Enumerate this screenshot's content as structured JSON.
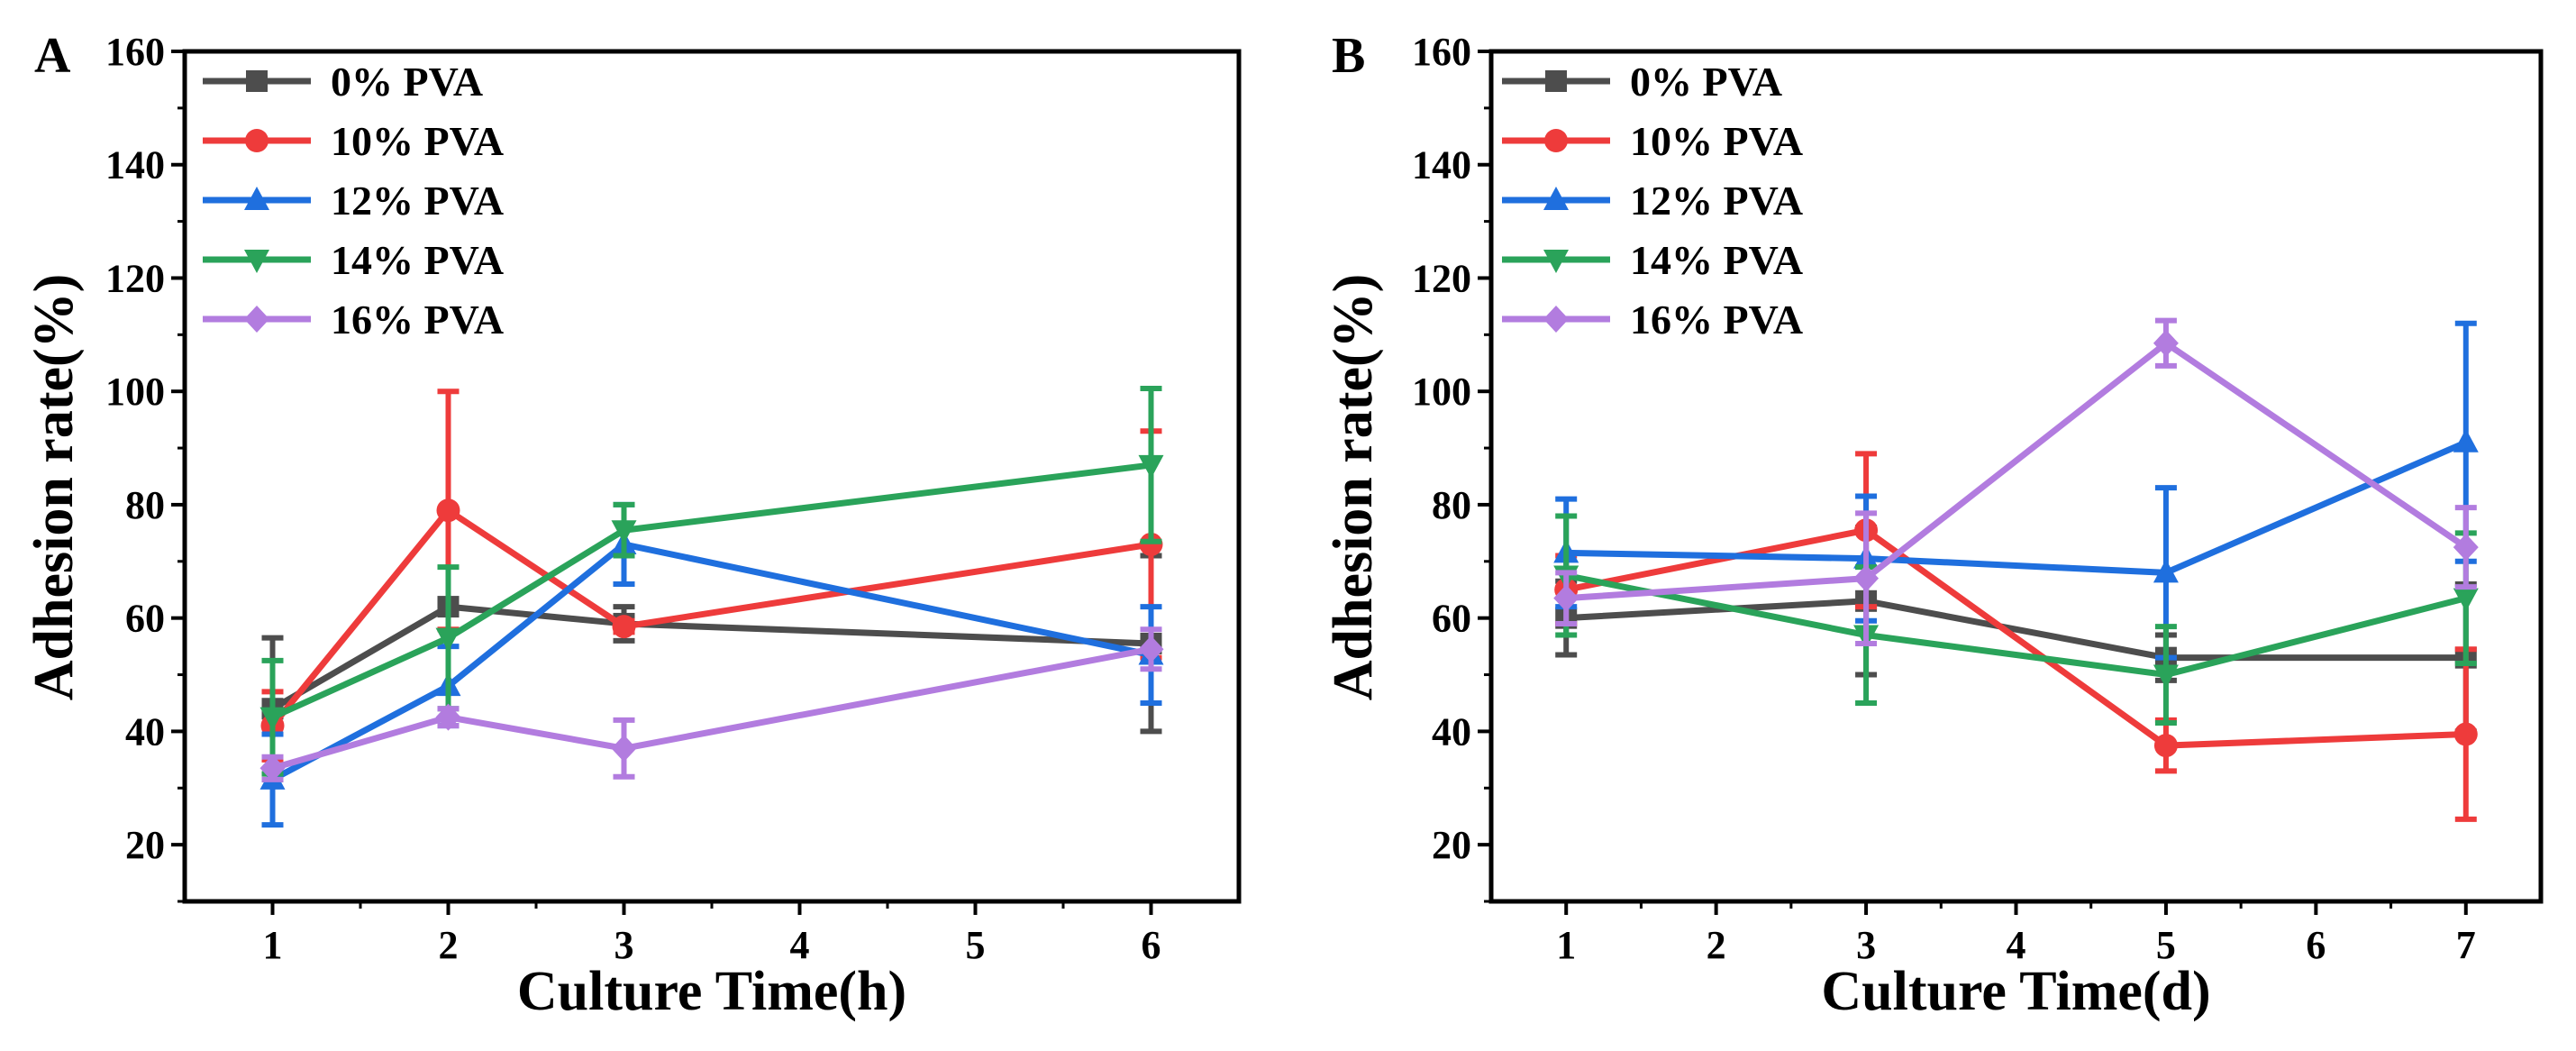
{
  "chart_data": [
    {
      "type": "line",
      "panel_label": "A",
      "title": "",
      "xlabel": "Culture Time(h)",
      "ylabel": "Adhesion rate(%)",
      "x_ticks": [
        1,
        2,
        3,
        4,
        5,
        6
      ],
      "y_ticks": [
        20,
        40,
        60,
        80,
        100,
        120,
        140,
        160
      ],
      "xlim": [
        0.5,
        6.5
      ],
      "ylim": [
        10,
        160
      ],
      "legend_position": "top-left",
      "x": [
        1,
        2,
        3,
        6
      ],
      "series": [
        {
          "name": "0% PVA",
          "color": "#4d4d4d",
          "marker": "square",
          "values": [
            44,
            62,
            59,
            55.5
          ],
          "errors": [
            12.5,
            0.5,
            3,
            15.5
          ]
        },
        {
          "name": "10% PVA",
          "color": "#ee3b3b",
          "marker": "circle",
          "values": [
            41,
            79,
            58.5,
            73
          ],
          "errors": [
            6,
            21,
            1,
            20
          ]
        },
        {
          "name": "12% PVA",
          "color": "#1f6fde",
          "marker": "triangle-up",
          "values": [
            31.5,
            48,
            73,
            53.5
          ],
          "errors": [
            8,
            7,
            7,
            8.5
          ]
        },
        {
          "name": "14% PVA",
          "color": "#2aa35a",
          "marker": "triangle-down",
          "values": [
            42.5,
            56.5,
            75.5,
            87
          ],
          "errors": [
            10,
            12.5,
            4.5,
            13.5
          ]
        },
        {
          "name": "16% PVA",
          "color": "#b27cdf",
          "marker": "diamond",
          "values": [
            33.5,
            42.5,
            37,
            54.5
          ],
          "errors": [
            2,
            1.5,
            5,
            3.5
          ]
        }
      ]
    },
    {
      "type": "line",
      "panel_label": "B",
      "title": "",
      "xlabel": "Culture Time(d)",
      "ylabel": "Adhesion rate(%)",
      "x_ticks": [
        1,
        2,
        3,
        4,
        5,
        6,
        7
      ],
      "y_ticks": [
        20,
        40,
        60,
        80,
        100,
        120,
        140,
        160
      ],
      "xlim": [
        0.5,
        7.5
      ],
      "ylim": [
        10,
        160
      ],
      "legend_position": "top-left",
      "x": [
        1,
        3,
        5,
        7
      ],
      "series": [
        {
          "name": "0% PVA",
          "color": "#4d4d4d",
          "marker": "square",
          "values": [
            60,
            63,
            53,
            53
          ],
          "errors": [
            6.5,
            13,
            4,
            13
          ]
        },
        {
          "name": "10% PVA",
          "color": "#ee3b3b",
          "marker": "circle",
          "values": [
            65,
            75.5,
            37.5,
            39.5
          ],
          "errors": [
            6,
            13.5,
            4.5,
            15
          ]
        },
        {
          "name": "12% PVA",
          "color": "#1f6fde",
          "marker": "triangle-up",
          "values": [
            71.5,
            70.5,
            68,
            91
          ],
          "errors": [
            9.5,
            11,
            15,
            21
          ]
        },
        {
          "name": "14% PVA",
          "color": "#2aa35a",
          "marker": "triangle-down",
          "values": [
            67.5,
            57,
            50,
            63.5
          ],
          "errors": [
            10.5,
            12,
            8.5,
            11.5
          ]
        },
        {
          "name": "16% PVA",
          "color": "#b27cdf",
          "marker": "diamond",
          "values": [
            63.5,
            67,
            108.5,
            72.5
          ],
          "errors": [
            4.5,
            11.5,
            4,
            7
          ]
        }
      ]
    }
  ]
}
